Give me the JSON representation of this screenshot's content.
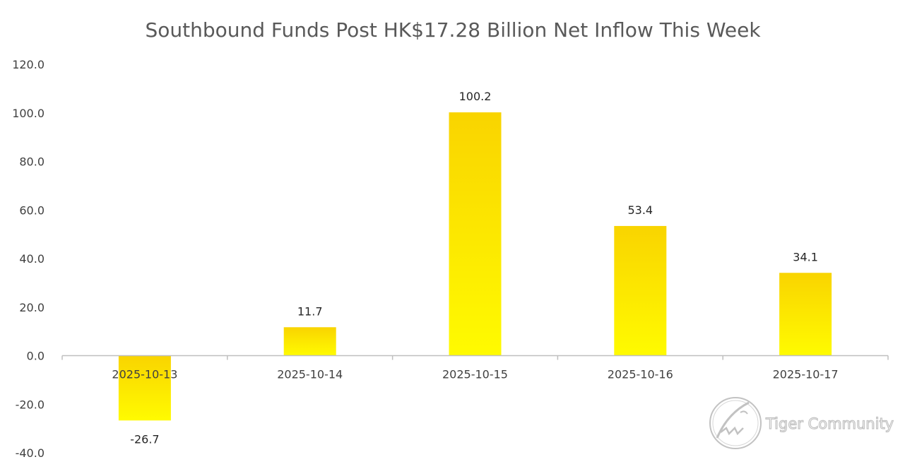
{
  "chart_data": {
    "type": "bar",
    "title": "Southbound Funds Post HK$17.28 Billion Net Inflow This Week",
    "categories": [
      "2025-10-13",
      "2025-10-14",
      "2025-10-15",
      "2025-10-16",
      "2025-10-17"
    ],
    "values": [
      -26.7,
      11.7,
      100.2,
      53.4,
      34.1
    ],
    "data_labels": [
      "-26.7",
      "11.7",
      "100.2",
      "53.4",
      "34.1"
    ],
    "y_ticks": [
      "120.0",
      "100.0",
      "80.0",
      "60.0",
      "40.0",
      "20.0",
      "0.0",
      "-20.0",
      "-40.0"
    ],
    "ylim": [
      -40,
      120
    ],
    "grid": false,
    "legend": "none",
    "colors": {
      "bar_top": "#f9d400",
      "bar_bottom": "#fffb00",
      "axis": "#bfbfbf",
      "title": "#595959"
    }
  },
  "watermark": {
    "text": "Tiger Community",
    "icon": "tiger-logo-icon"
  }
}
